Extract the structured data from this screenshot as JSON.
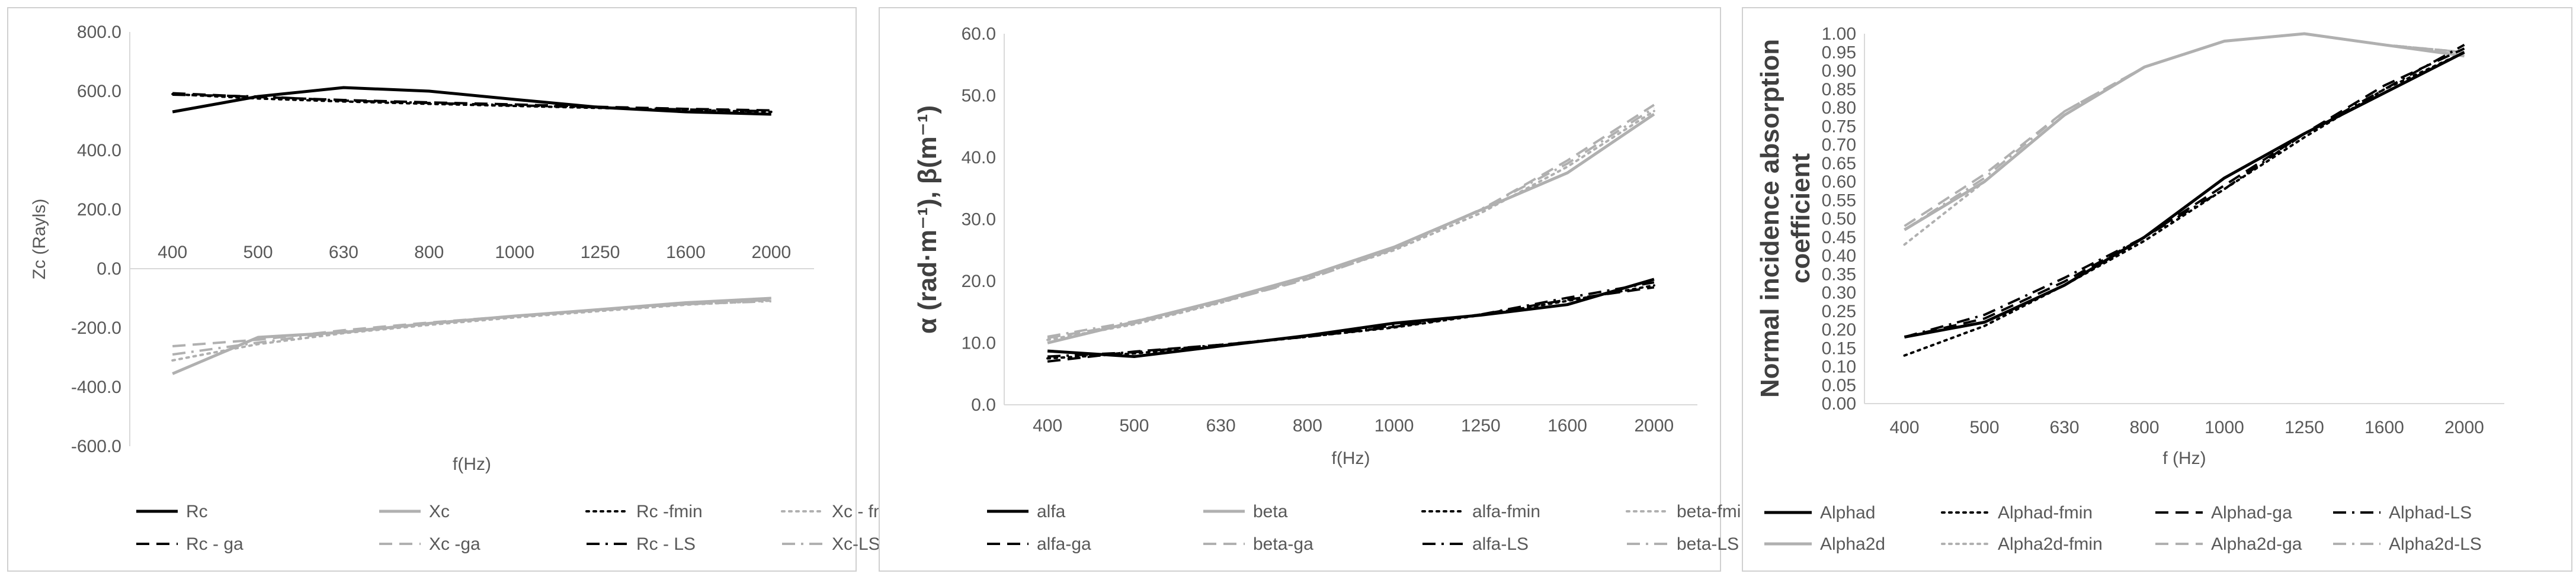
{
  "chart_data": [
    {
      "type": "line",
      "title": "",
      "xlabel": "f(Hz)",
      "ylabel": "Zc (Rayls)",
      "categories": [
        "400",
        "500",
        "630",
        "800",
        "1000",
        "1250",
        "1600",
        "2000"
      ],
      "ylim": [
        -600,
        800
      ],
      "yticks": [
        -600,
        -400,
        -200,
        0,
        200,
        400,
        600,
        800
      ],
      "ytick_labels": [
        "-600.0",
        "-400.0",
        "-200.0",
        "0.0",
        "200.0",
        "400.0",
        "600.0",
        "800.0"
      ],
      "x_axis_at": 0,
      "gridlines": false,
      "legend_position": "bottom",
      "series": [
        {
          "name": "Rc",
          "values": [
            530,
            582,
            612,
            600,
            572,
            545,
            530,
            522
          ],
          "color": "#000000",
          "dash": "solid",
          "width": 5
        },
        {
          "name": "Xc",
          "values": [
            -355,
            -232,
            -215,
            -185,
            -160,
            -138,
            -115,
            -100
          ],
          "color": "#b0b0b0",
          "dash": "solid",
          "width": 5
        },
        {
          "name": "Rc -fmin",
          "values": [
            590,
            575,
            565,
            557,
            550,
            543,
            536,
            530
          ],
          "color": "#000000",
          "dash": "dot",
          "width": 4
        },
        {
          "name": "Xc - fmin",
          "values": [
            -310,
            -255,
            -218,
            -190,
            -165,
            -143,
            -122,
            -108
          ],
          "color": "#b0b0b0",
          "dash": "dot",
          "width": 4
        },
        {
          "name": "Rc - ga",
          "values": [
            593,
            580,
            570,
            562,
            555,
            547,
            540,
            535
          ],
          "color": "#000000",
          "dash": "dash",
          "width": 4
        },
        {
          "name": "Xc -ga",
          "values": [
            -262,
            -240,
            -208,
            -182,
            -160,
            -138,
            -120,
            -105
          ],
          "color": "#b0b0b0",
          "dash": "dash",
          "width": 4
        },
        {
          "name": "Rc - LS",
          "values": [
            588,
            582,
            568,
            560,
            552,
            545,
            538,
            532
          ],
          "color": "#000000",
          "dash": "dashdot",
          "width": 4
        },
        {
          "name": "Xc-LS",
          "values": [
            -290,
            -250,
            -212,
            -186,
            -162,
            -140,
            -120,
            -110
          ],
          "color": "#b0b0b0",
          "dash": "dashdot",
          "width": 4
        }
      ]
    },
    {
      "type": "line",
      "title": "",
      "xlabel": "f(Hz)",
      "ylabel": "α (rad·m⁻¹), β(m⁻¹)",
      "categories": [
        "400",
        "500",
        "630",
        "800",
        "1000",
        "1250",
        "1600",
        "2000"
      ],
      "ylim": [
        0,
        60
      ],
      "yticks": [
        0,
        10,
        20,
        30,
        40,
        50,
        60
      ],
      "ytick_labels": [
        "0.0",
        "10.0",
        "20.0",
        "30.0",
        "40.0",
        "50.0",
        "60.0"
      ],
      "gridlines": false,
      "legend_position": "bottom",
      "series": [
        {
          "name": "alfa",
          "values": [
            8.7,
            7.8,
            9.5,
            11.2,
            13.2,
            14.5,
            16.2,
            20.3
          ],
          "color": "#000000",
          "dash": "solid",
          "width": 5
        },
        {
          "name": "beta",
          "values": [
            10.0,
            13.4,
            16.9,
            20.8,
            25.5,
            31.5,
            37.5,
            47.0
          ],
          "color": "#b0b0b0",
          "dash": "solid",
          "width": 5
        },
        {
          "name": "alfa-fmin",
          "values": [
            7.5,
            8.3,
            9.6,
            11.0,
            12.5,
            14.5,
            16.8,
            19.3
          ],
          "color": "#000000",
          "dash": "dot",
          "width": 4
        },
        {
          "name": "beta-fmin",
          "values": [
            10.5,
            13.0,
            16.5,
            20.5,
            25.0,
            31.0,
            38.5,
            47.5
          ],
          "color": "#b0b0b0",
          "dash": "dot",
          "width": 4
        },
        {
          "name": "alfa-ga",
          "values": [
            7.0,
            8.6,
            9.7,
            11.0,
            12.6,
            14.6,
            17.0,
            19.0
          ],
          "color": "#000000",
          "dash": "dash",
          "width": 4
        },
        {
          "name": "beta-ga",
          "values": [
            10.8,
            13.2,
            16.6,
            20.3,
            25.2,
            31.5,
            39.5,
            48.5
          ],
          "color": "#b0b0b0",
          "dash": "dash",
          "width": 4
        },
        {
          "name": "alfa-LS",
          "values": [
            7.8,
            8.5,
            9.7,
            11.1,
            12.8,
            14.6,
            17.3,
            19.8
          ],
          "color": "#000000",
          "dash": "dashdot",
          "width": 4
        },
        {
          "name": "beta-LS",
          "values": [
            11.0,
            13.5,
            16.8,
            20.6,
            25.3,
            31.6,
            39.0,
            48.0
          ],
          "color": "#b0b0b0",
          "dash": "dashdot",
          "width": 4
        }
      ]
    },
    {
      "type": "line",
      "title": "",
      "xlabel": "f (Hz)",
      "ylabel": "Normal incidence absorption coefficient",
      "categories": [
        "400",
        "500",
        "630",
        "800",
        "1000",
        "1250",
        "1600",
        "2000"
      ],
      "ylim": [
        0,
        1.0
      ],
      "yticks": [
        0,
        0.05,
        0.1,
        0.15,
        0.2,
        0.25,
        0.3,
        0.35,
        0.4,
        0.45,
        0.5,
        0.55,
        0.6,
        0.65,
        0.7,
        0.75,
        0.8,
        0.85,
        0.9,
        0.95,
        1.0
      ],
      "ytick_labels": [
        "0.00",
        "0.05",
        "0.10",
        "0.15",
        "0.20",
        "0.25",
        "0.30",
        "0.35",
        "0.40",
        "0.45",
        "0.50",
        "0.55",
        "0.60",
        "0.65",
        "0.70",
        "0.75",
        "0.80",
        "0.85",
        "0.90",
        "0.95",
        "1.00"
      ],
      "gridlines": false,
      "legend_position": "bottom",
      "series": [
        {
          "name": "Alphad",
          "values": [
            0.18,
            0.22,
            0.32,
            0.45,
            0.61,
            0.73,
            0.84,
            0.95
          ],
          "color": "#000000",
          "dash": "solid",
          "width": 5
        },
        {
          "name": "Alphad-fmin",
          "values": [
            0.13,
            0.21,
            0.32,
            0.44,
            0.58,
            0.72,
            0.85,
            0.95
          ],
          "color": "#000000",
          "dash": "dot",
          "width": 4
        },
        {
          "name": "Alphad-ga",
          "values": [
            0.18,
            0.23,
            0.33,
            0.45,
            0.59,
            0.73,
            0.86,
            0.96
          ],
          "color": "#000000",
          "dash": "dash",
          "width": 4
        },
        {
          "name": "Alphad-LS",
          "values": [
            0.18,
            0.24,
            0.34,
            0.45,
            0.58,
            0.73,
            0.85,
            0.97
          ],
          "color": "#000000",
          "dash": "dashdot",
          "width": 4
        },
        {
          "name": "Alpha2d",
          "values": [
            0.47,
            0.6,
            0.78,
            0.91,
            0.98,
            1.0,
            0.97,
            0.94
          ],
          "color": "#b0b0b0",
          "dash": "solid",
          "width": 5
        },
        {
          "name": "Alpha2d-fmin",
          "values": [
            0.43,
            0.6,
            0.78,
            0.91,
            0.98,
            1.0,
            0.97,
            0.95
          ],
          "color": "#b0b0b0",
          "dash": "dot",
          "width": 4
        },
        {
          "name": "Alpha2d-ga",
          "values": [
            0.48,
            0.62,
            0.79,
            0.91,
            0.98,
            1.0,
            0.97,
            0.95
          ],
          "color": "#b0b0b0",
          "dash": "dash",
          "width": 4
        },
        {
          "name": "Alpha2d-LS",
          "values": [
            0.47,
            0.61,
            0.79,
            0.91,
            0.98,
            1.0,
            0.97,
            0.95
          ],
          "color": "#b0b0b0",
          "dash": "dashdot",
          "width": 4
        }
      ]
    }
  ]
}
